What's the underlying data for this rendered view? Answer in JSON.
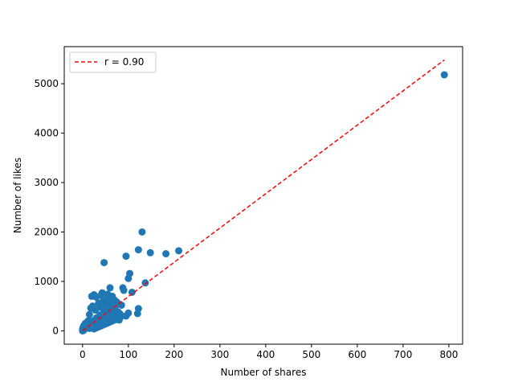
{
  "chart_data": {
    "type": "scatter",
    "xlabel": "Number of shares",
    "ylabel": "Number of likes",
    "xlim": [
      -40,
      830
    ],
    "ylim": [
      -270,
      5750
    ],
    "xticks": [
      0,
      100,
      200,
      300,
      400,
      500,
      600,
      700,
      800
    ],
    "yticks": [
      0,
      1000,
      2000,
      3000,
      4000,
      5000
    ],
    "grid": false,
    "legend_position": "top-left",
    "colors": {
      "points": "#1f77b4",
      "fit_line": "#ff0000"
    },
    "series": [
      {
        "kind": "points",
        "x": [
          790,
          130,
          122,
          148,
          182,
          210,
          95,
          47,
          103,
          100,
          137,
          108,
          88,
          90,
          60,
          43,
          20,
          25,
          30,
          40,
          55,
          65,
          70,
          75,
          80,
          85,
          95,
          100,
          120,
          122,
          15,
          12,
          10,
          8,
          5,
          3,
          2,
          1,
          0,
          0,
          1,
          2,
          4,
          6,
          8,
          10,
          12,
          14,
          16,
          18,
          20,
          22,
          24,
          26,
          28,
          30,
          32,
          34,
          36,
          38,
          40,
          42,
          44,
          46,
          48,
          50,
          52,
          54,
          56,
          58,
          60,
          62,
          64,
          66,
          68,
          70,
          72,
          74,
          76,
          78,
          80,
          18,
          22,
          28,
          35,
          38,
          45,
          50,
          52,
          58,
          62,
          68,
          72,
          78,
          82,
          86,
          25,
          30,
          35,
          40,
          45,
          50,
          55,
          60,
          65,
          70,
          20,
          25,
          30,
          35,
          42,
          48,
          55,
          62,
          15,
          18,
          22,
          26,
          30,
          34,
          38,
          42
        ],
        "y": [
          5180,
          2000,
          1640,
          1580,
          1560,
          1620,
          1510,
          1380,
          1160,
          1060,
          970,
          780,
          870,
          820,
          870,
          770,
          700,
          730,
          680,
          720,
          740,
          700,
          620,
          580,
          540,
          520,
          300,
          360,
          350,
          450,
          330,
          200,
          120,
          80,
          40,
          20,
          10,
          5,
          0,
          30,
          60,
          90,
          120,
          150,
          100,
          80,
          60,
          90,
          130,
          160,
          200,
          150,
          110,
          180,
          220,
          260,
          190,
          230,
          280,
          320,
          250,
          300,
          340,
          380,
          290,
          330,
          400,
          360,
          310,
          420,
          380,
          340,
          300,
          440,
          400,
          360,
          280,
          320,
          260,
          240,
          220,
          460,
          500,
          420,
          560,
          480,
          600,
          520,
          640,
          580,
          500,
          460,
          420,
          380,
          340,
          300,
          40,
          60,
          80,
          100,
          120,
          140,
          160,
          180,
          200,
          220,
          100,
          130,
          160,
          190,
          220,
          250,
          280,
          300,
          50,
          70,
          90,
          110,
          130,
          150,
          170,
          190
        ]
      },
      {
        "kind": "fit_line",
        "name": "r = 0.90",
        "x": [
          0,
          790
        ],
        "y": [
          0,
          5480
        ]
      }
    ]
  }
}
